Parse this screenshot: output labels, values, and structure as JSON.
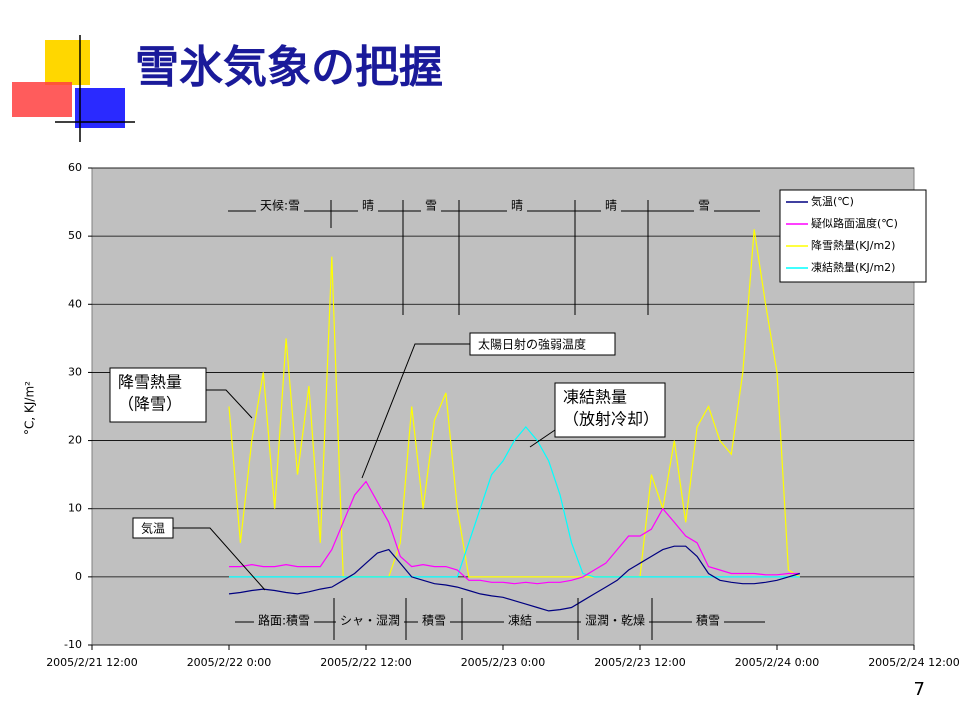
{
  "page_number": "7",
  "chart_data": {
    "type": "line",
    "title": "雪氷気象の把握",
    "y_label": "°C, KJ/m²",
    "x": [
      "2005/2/22 0:00",
      "2005/2/22 1:00",
      "2005/2/22 2:00",
      "2005/2/22 3:00",
      "2005/2/22 4:00",
      "2005/2/22 5:00",
      "2005/2/22 6:00",
      "2005/2/22 7:00",
      "2005/2/22 8:00",
      "2005/2/22 9:00",
      "2005/2/22 10:00",
      "2005/2/22 11:00",
      "2005/2/22 12:00",
      "2005/2/22 13:00",
      "2005/2/22 14:00",
      "2005/2/22 15:00",
      "2005/2/22 16:00",
      "2005/2/22 17:00",
      "2005/2/22 18:00",
      "2005/2/22 19:00",
      "2005/2/22 20:00",
      "2005/2/22 21:00",
      "2005/2/22 22:00",
      "2005/2/22 23:00",
      "2005/2/23 0:00",
      "2005/2/23 1:00",
      "2005/2/23 2:00",
      "2005/2/23 3:00",
      "2005/2/23 4:00",
      "2005/2/23 5:00",
      "2005/2/23 6:00",
      "2005/2/23 7:00",
      "2005/2/23 8:00",
      "2005/2/23 9:00",
      "2005/2/23 10:00",
      "2005/2/23 11:00",
      "2005/2/23 12:00",
      "2005/2/23 13:00",
      "2005/2/23 14:00",
      "2005/2/23 15:00",
      "2005/2/23 16:00",
      "2005/2/23 17:00",
      "2005/2/23 18:00",
      "2005/2/23 19:00",
      "2005/2/23 20:00",
      "2005/2/23 21:00",
      "2005/2/23 22:00",
      "2005/2/23 23:00",
      "2005/2/24 0:00",
      "2005/2/24 1:00",
      "2005/2/24 2:00"
    ],
    "series": [
      {
        "name": "気温(℃)",
        "color": "#000080",
        "values": [
          -2.5,
          -2.3,
          -2,
          -1.8,
          -2,
          -2.3,
          -2.5,
          -2.2,
          -1.8,
          -1.5,
          -0.5,
          0.5,
          2,
          3.5,
          4,
          2,
          0,
          -0.5,
          -1,
          -1.2,
          -1.5,
          -2,
          -2.5,
          -2.8,
          -3,
          -3.5,
          -4,
          -4.5,
          -5,
          -4.8,
          -4.5,
          -3.5,
          -2.5,
          -1.5,
          -0.5,
          1,
          2,
          3,
          4,
          4.5,
          4.5,
          3,
          0.5,
          -0.5,
          -0.8,
          -1,
          -1,
          -0.8,
          -0.5,
          0,
          0.5
        ]
      },
      {
        "name": "疑似路面温度(℃)",
        "color": "#ff00ff",
        "values": [
          1.5,
          1.5,
          1.8,
          1.5,
          1.5,
          1.8,
          1.5,
          1.5,
          1.5,
          4,
          8,
          12,
          14,
          11,
          8,
          3,
          1.5,
          1.8,
          1.5,
          1.5,
          1,
          -0.5,
          -0.5,
          -0.8,
          -0.8,
          -1,
          -0.8,
          -1,
          -0.8,
          -0.8,
          -0.5,
          0,
          1,
          2,
          4,
          6,
          6,
          7,
          10,
          8,
          6,
          5,
          1.5,
          1,
          0.5,
          0.5,
          0.5,
          0.3,
          0.3,
          0.5,
          0.5
        ]
      },
      {
        "name": "降雪熱量(KJ/m2)",
        "color": "#ffff00",
        "values": [
          25,
          5,
          20,
          30,
          10,
          35,
          15,
          28,
          5,
          47,
          0,
          0,
          0,
          0,
          0,
          5,
          25,
          10,
          23,
          27,
          10,
          0,
          0,
          0,
          0,
          0,
          0,
          0,
          0,
          0,
          0,
          0,
          0,
          0,
          0,
          0,
          0,
          15,
          10,
          20,
          8,
          22,
          25,
          20,
          18,
          30,
          51,
          40,
          30,
          1,
          0
        ]
      },
      {
        "name": "凍結熱量(KJ/m2)",
        "color": "#00ffff",
        "values": [
          0,
          0,
          0,
          0,
          0,
          0,
          0,
          0,
          0,
          0,
          0,
          0,
          0,
          0,
          0,
          0,
          0,
          0,
          0,
          0,
          0,
          5,
          10,
          15,
          17,
          20,
          22,
          20,
          17,
          12,
          5,
          0.5,
          0,
          0,
          0,
          0,
          0,
          0,
          0,
          0,
          0,
          0,
          0,
          0,
          0,
          0,
          0,
          0,
          0,
          0,
          0
        ]
      }
    ],
    "xlim": [
      "2005/2/21 12:00",
      "2005/2/24 12:00"
    ],
    "xticks": [
      "2005/2/21 12:00",
      "2005/2/22 0:00",
      "2005/2/22 12:00",
      "2005/2/23 0:00",
      "2005/2/23 12:00",
      "2005/2/24 0:00",
      "2005/2/24 12:00"
    ],
    "ylim": [
      -10,
      60
    ],
    "yticks": [
      -10,
      0,
      10,
      20,
      30,
      40,
      50,
      60
    ],
    "grid": true,
    "legend": "upper right",
    "weather_labels": [
      "天候:雪",
      "晴",
      "雪",
      "晴",
      "晴",
      "雪"
    ],
    "road_labels": [
      "路面:積雪",
      "シャ・湿潤",
      "積雪",
      "凍結",
      "湿潤・乾燥",
      "積雪"
    ],
    "callouts": [
      [
        "太陽日射の強弱温度"
      ],
      [
        "凍結熱量",
        "（放射冷却）"
      ],
      [
        "降雪熱量",
        "（降雪）"
      ],
      [
        "気温"
      ]
    ]
  }
}
